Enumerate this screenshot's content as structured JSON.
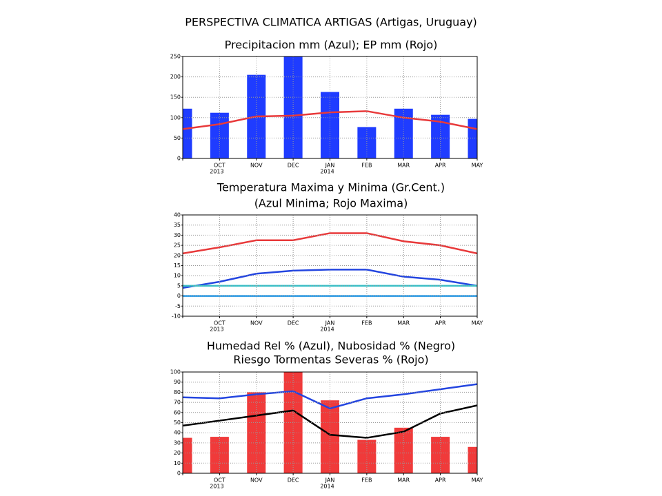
{
  "title": "PERSPECTIVA CLIMATICA ARTIGAS (Artigas, Uruguay)",
  "chart_data": [
    {
      "type": "bar",
      "title": "Precipitacion mm (Azul); EP mm (Rojo)",
      "categories": [
        null,
        "OCT",
        "NOV",
        "DEC",
        "JAN",
        "FEB",
        "MAR",
        "APR",
        "MAY"
      ],
      "category_years": [
        null,
        "2013",
        null,
        null,
        "2014",
        null,
        null,
        null,
        null
      ],
      "ylim": [
        0,
        250
      ],
      "yticks": [
        0,
        50,
        100,
        150,
        200,
        250
      ],
      "grid": true,
      "series": [
        {
          "type": "bar",
          "color": "#1f3cff",
          "values": [
            122,
            112,
            205,
            250,
            163,
            77,
            122,
            107,
            97
          ]
        },
        {
          "type": "line",
          "color": "#e8393a",
          "values": [
            72,
            84,
            103,
            105,
            113,
            116,
            100,
            90,
            72
          ]
        }
      ]
    },
    {
      "type": "line",
      "title": "Temperatura Maxima y Minima (Gr.Cent.)",
      "subtitle": "(Azul Minima; Rojo Maxima)",
      "categories": [
        null,
        "OCT",
        "NOV",
        "DEC",
        "JAN",
        "FEB",
        "MAR",
        "APR",
        "MAY"
      ],
      "category_years": [
        null,
        "2013",
        null,
        null,
        "2014",
        null,
        null,
        null,
        null
      ],
      "ylim": [
        -10,
        40
      ],
      "yticks": [
        -10,
        -5,
        0,
        5,
        10,
        15,
        20,
        25,
        30,
        35,
        40
      ],
      "grid": true,
      "series": [
        {
          "type": "line",
          "color": "#e8393a",
          "values": [
            21,
            24,
            27.5,
            27.5,
            31,
            31,
            27,
            25,
            21
          ]
        },
        {
          "type": "line",
          "color": "#2345e0",
          "values": [
            4,
            7,
            11,
            12.5,
            13,
            13,
            9.5,
            8,
            5
          ]
        },
        {
          "type": "line",
          "color": "#2ec4cc",
          "values": [
            5,
            5,
            5,
            5,
            5,
            5,
            5,
            5,
            5
          ]
        },
        {
          "type": "line",
          "color": "#1e96e6",
          "values": [
            0,
            0,
            0,
            0,
            0,
            0,
            0,
            0,
            0
          ]
        }
      ]
    },
    {
      "type": "bar",
      "title": "Humedad Rel % (Azul), Nubosidad % (Negro)",
      "subtitle": "Riesgo Tormentas Severas % (Rojo)",
      "categories": [
        null,
        "OCT",
        "NOV",
        "DEC",
        "JAN",
        "FEB",
        "MAR",
        "APR",
        "MAY"
      ],
      "category_years": [
        null,
        "2013",
        null,
        null,
        "2014",
        null,
        null,
        null,
        null
      ],
      "ylim": [
        0,
        100
      ],
      "yticks": [
        0,
        10,
        20,
        30,
        40,
        50,
        60,
        70,
        80,
        90,
        100
      ],
      "grid": true,
      "series": [
        {
          "type": "bar",
          "color": "#f03a3a",
          "values": [
            35,
            36,
            80,
            100,
            72,
            33,
            45,
            36,
            26
          ]
        },
        {
          "type": "line",
          "color": "#2345e0",
          "values": [
            75,
            74,
            78,
            81,
            64,
            74,
            78,
            83,
            88
          ]
        },
        {
          "type": "line",
          "color": "#000000",
          "values": [
            47,
            52,
            57,
            62,
            38,
            35,
            41,
            59,
            67
          ]
        }
      ]
    }
  ]
}
